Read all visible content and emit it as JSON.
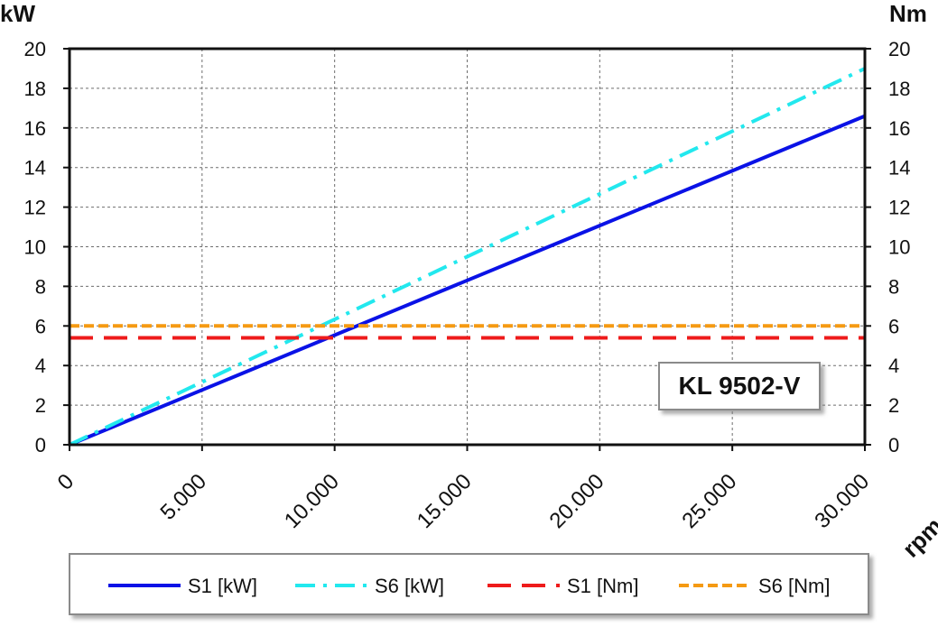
{
  "chart_data": {
    "type": "line",
    "model_label": "KL 9502-V",
    "xlabel": "rpm",
    "ylabel_left": "kW",
    "ylabel_right": "Nm",
    "xlim": [
      0,
      30000
    ],
    "ylim_left": [
      0,
      20
    ],
    "ylim_right": [
      0,
      20
    ],
    "x_ticks": [
      0,
      5000,
      10000,
      15000,
      20000,
      25000,
      30000
    ],
    "x_tick_labels": [
      "0",
      "5.000",
      "10.000",
      "15.000",
      "20.000",
      "25.000",
      "30.000"
    ],
    "y_ticks": [
      0,
      2,
      4,
      6,
      8,
      10,
      12,
      14,
      16,
      18,
      20
    ],
    "y_tick_labels": [
      "0",
      "2",
      "4",
      "6",
      "8",
      "10",
      "12",
      "14",
      "16",
      "18",
      "20"
    ],
    "grid": true,
    "legend_position": "bottom",
    "series": [
      {
        "name": "S1 [kW]",
        "axis": "left",
        "color": "#0a12e6",
        "style": "solid",
        "x": [
          0,
          30000
        ],
        "y": [
          0,
          16.6
        ]
      },
      {
        "name": "S6 [kW]",
        "axis": "left",
        "color": "#22e8ee",
        "style": "dash-dot",
        "x": [
          0,
          30000
        ],
        "y": [
          0,
          19.0
        ]
      },
      {
        "name": "S1 [Nm]",
        "axis": "right",
        "color": "#ee1b1b",
        "style": "dashed",
        "x": [
          0,
          30000
        ],
        "y": [
          5.4,
          5.4
        ]
      },
      {
        "name": "S6 [Nm]",
        "axis": "right",
        "color": "#f59a12",
        "style": "short-dashed",
        "x": [
          0,
          30000
        ],
        "y": [
          6.0,
          6.0
        ]
      }
    ]
  }
}
